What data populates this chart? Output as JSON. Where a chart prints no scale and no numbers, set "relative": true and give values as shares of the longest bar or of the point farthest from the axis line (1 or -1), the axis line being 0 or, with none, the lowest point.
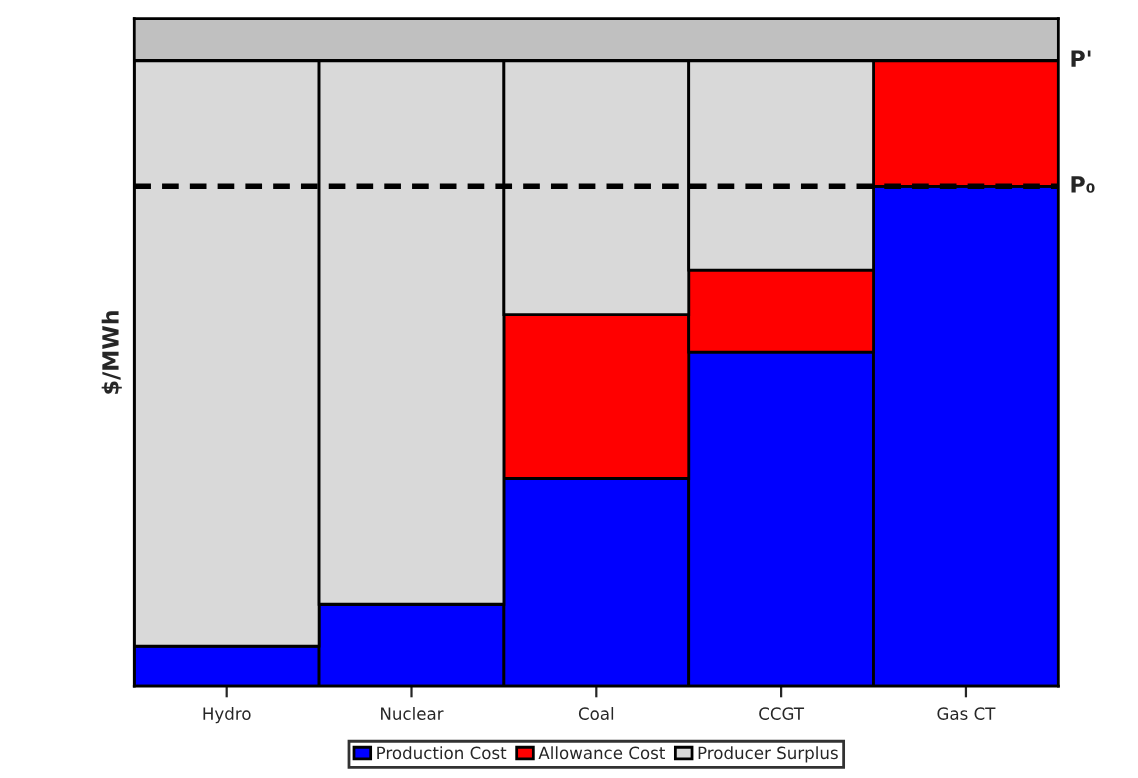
{
  "chart_data": {
    "type": "bar",
    "relative": true,
    "stacked": true,
    "ylabel": "$/MWh",
    "categories": [
      "Hydro",
      "Nuclear",
      "Coal",
      "CCGT",
      "Gas CT"
    ],
    "series": [
      {
        "name": "Production Cost",
        "color": "#0000ff",
        "values": [
          0.064,
          0.131,
          0.332,
          0.534,
          0.799
        ]
      },
      {
        "name": "Allowance Cost",
        "color": "#ff0000",
        "values": [
          0,
          0,
          0.262,
          0.131,
          0.201
        ]
      },
      {
        "name": "Producer Surplus",
        "color": "#d9d9d9",
        "values": [
          0.936,
          0.869,
          0.406,
          0.335,
          null
        ]
      }
    ],
    "ref_lines": [
      {
        "axis": "y",
        "value": 0.799,
        "label": "P₀",
        "color": "#000000",
        "line_style": "dashed"
      },
      {
        "axis": "y",
        "value": 1,
        "label": "P'",
        "color": "#000000",
        "line_style": "solid"
      }
    ],
    "legend": "bottom",
    "grid": false
  }
}
